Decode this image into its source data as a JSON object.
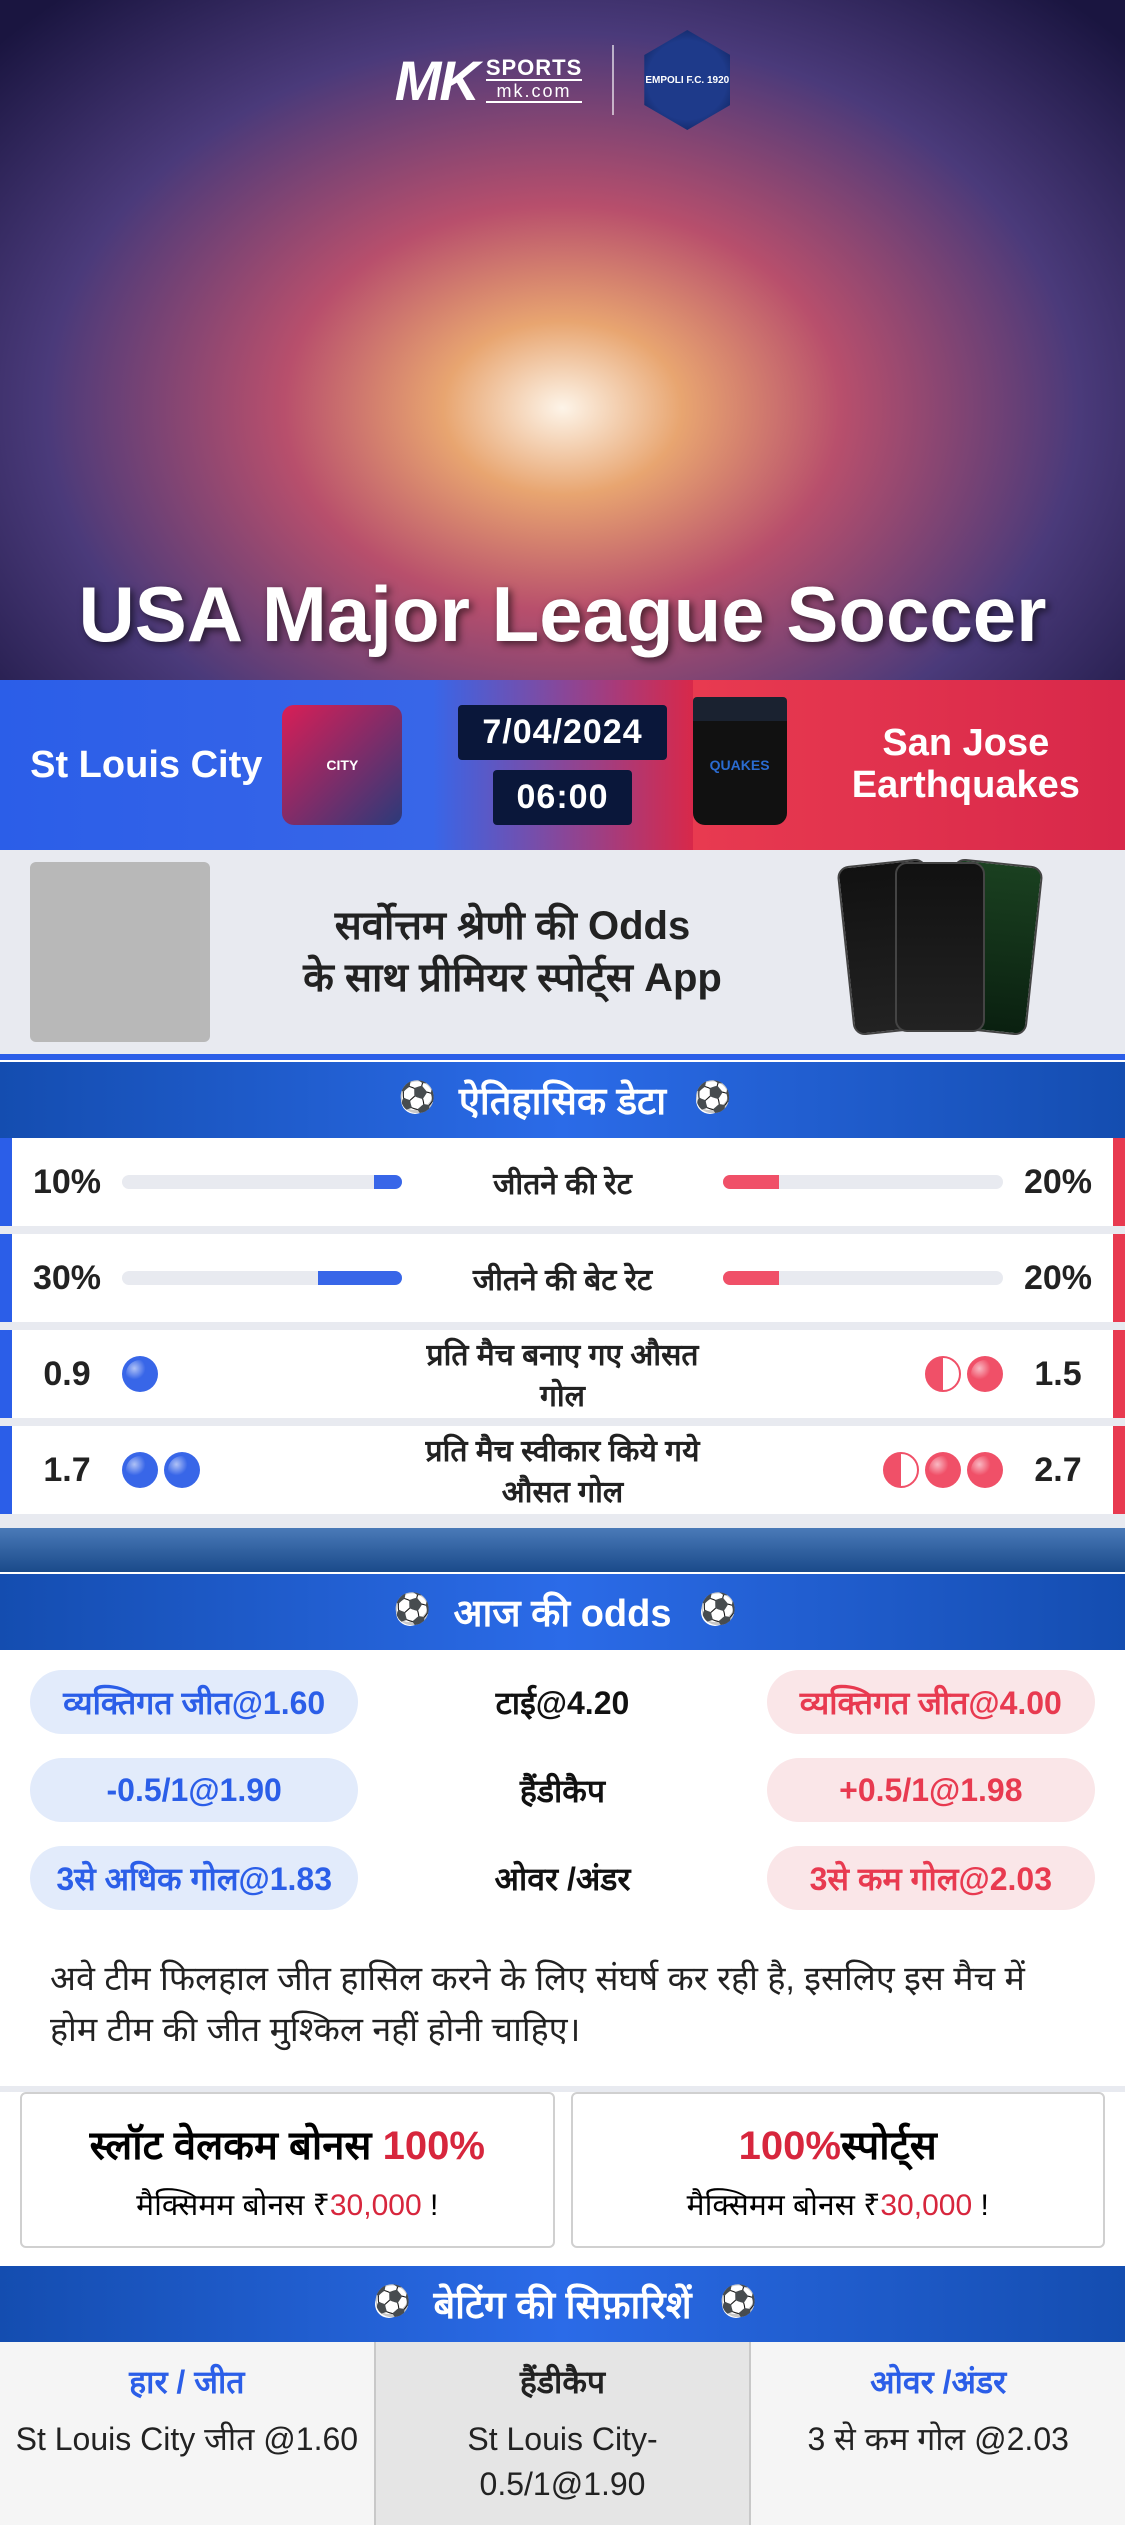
{
  "brand": {
    "logo_initials": "MK",
    "logo_top": "SPORTS",
    "logo_bottom": "mk.com",
    "crest_text": "EMPOLI F.C. 1920"
  },
  "hero": {
    "title": "USA Major League Soccer"
  },
  "match": {
    "date": "7/04/2024",
    "time": "06:00",
    "home_name": "St Louis City",
    "away_name": "San Jose Earthquakes",
    "home_logo_text": "CITY",
    "away_logo_text": "QUAKES"
  },
  "promo": {
    "line1": "सर्वोत्तम श्रेणी की Odds",
    "line2": "के साथ प्रीमियर स्पोर्ट्स App"
  },
  "sections": {
    "historical": "ऐतिहासिक डेटा",
    "today_odds": "आज की odds",
    "recommendations": "बेटिंग की सिफ़ारिशें"
  },
  "historical": {
    "rows": [
      {
        "home_val": "10%",
        "away_val": "20%",
        "label": "जीतने की रेट",
        "type": "bar",
        "home_pct": 10,
        "away_pct": 20
      },
      {
        "home_val": "30%",
        "away_val": "20%",
        "label": "जीतने की बेट रेट",
        "type": "bar",
        "home_pct": 30,
        "away_pct": 20
      },
      {
        "home_val": "0.9",
        "away_val": "1.5",
        "label": "प्रति मैच बनाए गए औसत गोल",
        "type": "balls",
        "home_balls": 1,
        "home_half": false,
        "away_balls": 1,
        "away_half": true
      },
      {
        "home_val": "1.7",
        "away_val": "2.7",
        "label": "प्रति मैच स्वीकार किये गये औसत गोल",
        "type": "balls",
        "home_balls": 2,
        "home_half": false,
        "away_balls": 2,
        "away_half": true
      }
    ]
  },
  "odds": {
    "rows": [
      {
        "left": "व्यक्तिगत जीत@1.60",
        "mid": "टाई@4.20",
        "right": "व्यक्तिगत जीत@4.00"
      },
      {
        "left": "-0.5/1@1.90",
        "mid": "हैंडीकैप",
        "right": "+0.5/1@1.98"
      },
      {
        "left": "3से अधिक गोल@1.83",
        "mid": "ओवर /अंडर",
        "right": "3से कम गोल@2.03"
      }
    ]
  },
  "analysis": "अवे टीम फिलहाल जीत हासिल करने के लिए संघर्ष कर रही है, इसलिए इस मैच में होम टीम की जीत मुश्किल नहीं होनी चाहिए।",
  "bonuses": [
    {
      "title_pre": "स्लॉट वेलकम बोनस ",
      "title_red": "100%",
      "sub_pre": "मैक्सिमम बोनस ₹",
      "sub_amt": "30,000",
      "sub_post": "   !"
    },
    {
      "title_pre": "",
      "title_red": "100%",
      "title_post": "स्पोर्ट्स",
      "sub_pre": "मैक्सिमम बोनस  ₹",
      "sub_amt": "30,000",
      "sub_post": " !"
    }
  ],
  "recs": [
    {
      "header": "हार / जीत",
      "color": "blue",
      "value": "St Louis City जीत @1.60"
    },
    {
      "header": "हैंडीकैप",
      "color": "black",
      "value": "St Louis City-0.5/1@1.90"
    },
    {
      "header": "ओवर /अंडर",
      "color": "blue",
      "value": "3 से कम गोल @2.03"
    }
  ],
  "colors": {
    "brand_blue": "#2b5ee8",
    "brand_red": "#e83a50",
    "accent_red": "#d7263d",
    "bar_blue": "#3866e8",
    "bar_red": "#f05068",
    "grid_band": "#e8eaf0"
  }
}
